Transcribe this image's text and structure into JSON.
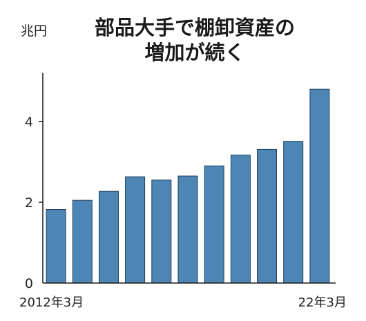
{
  "chart_data": {
    "type": "bar",
    "title_lines": [
      "部品大手で棚卸資産の",
      "増加が続く"
    ],
    "unit_label": "兆円",
    "categories": [
      "2012年3月",
      "",
      "",
      "",
      "",
      "",
      "",
      "",
      "",
      "",
      "22年3月"
    ],
    "values": [
      1.82,
      2.05,
      2.27,
      2.63,
      2.55,
      2.65,
      2.9,
      3.17,
      3.31,
      3.51,
      4.8
    ],
    "y_ticks": [
      0,
      2,
      4
    ],
    "ylim": [
      0,
      5.2
    ],
    "grid": false,
    "bar_color": "#4d86b5",
    "bar_stroke": "#1e3f5c",
    "axis_color": "#1a1a1a"
  }
}
